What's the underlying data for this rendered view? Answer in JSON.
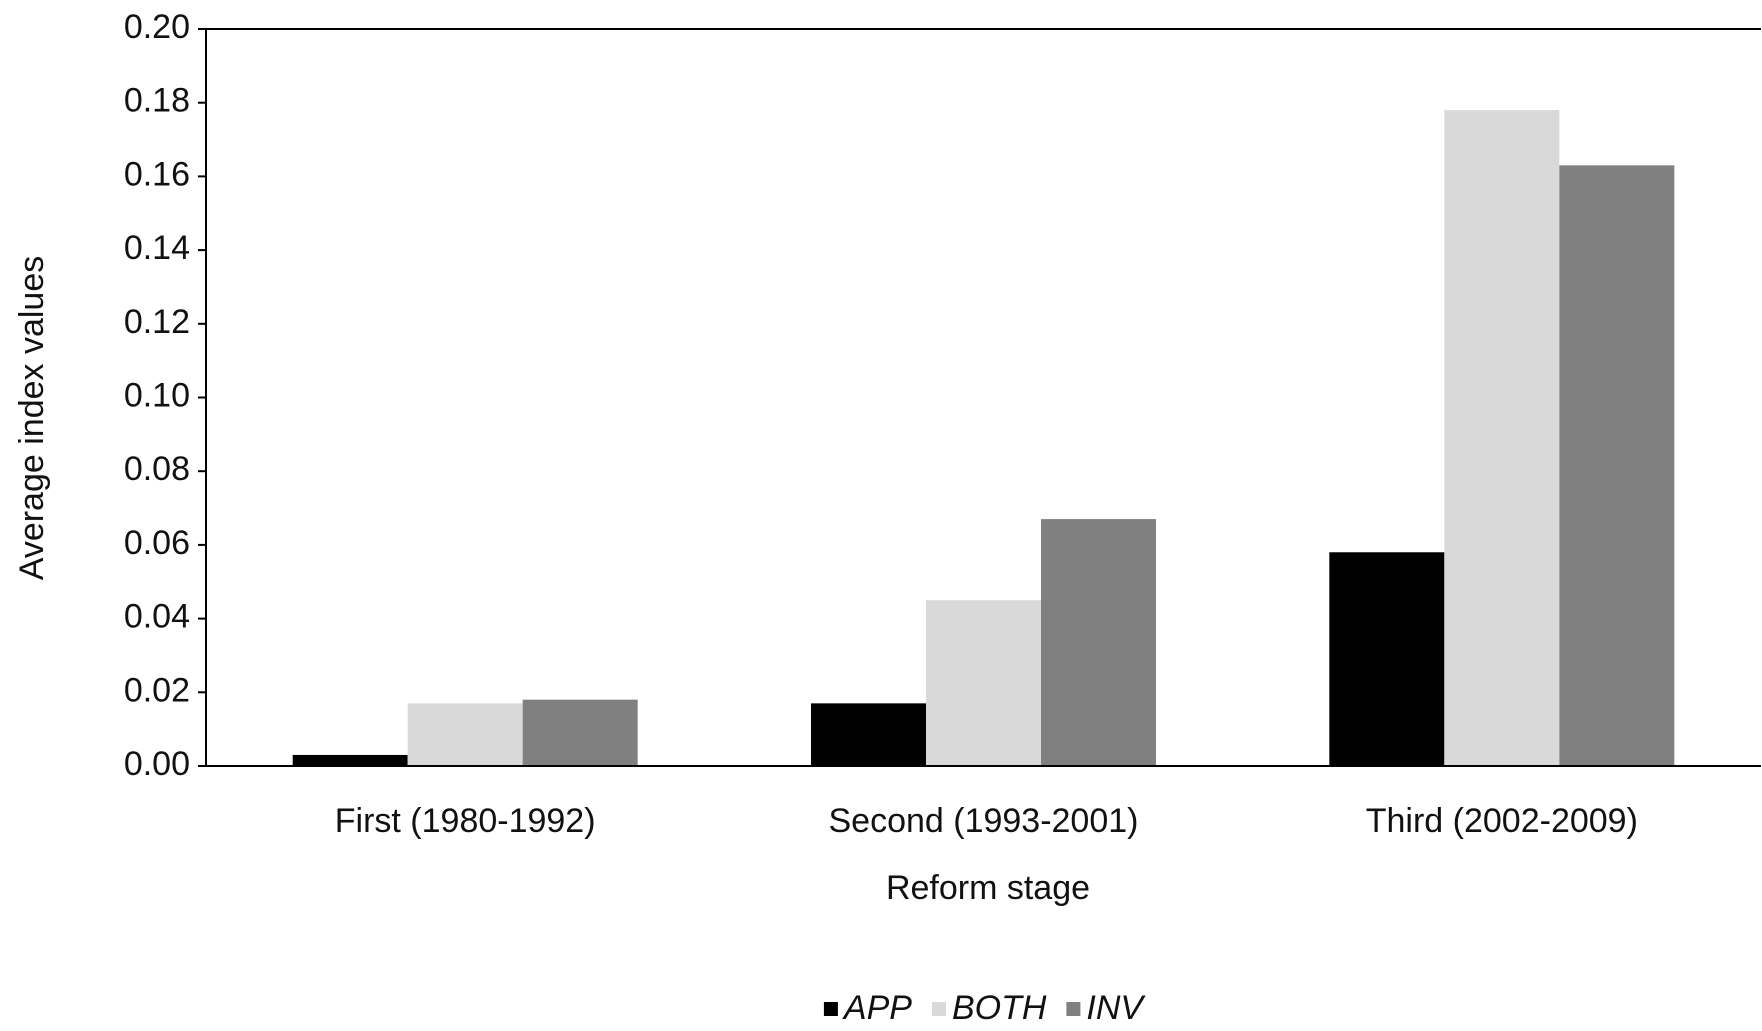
{
  "chart_data": {
    "type": "bar",
    "x_label": "Reform stage",
    "y_label": "Average index values",
    "categories": [
      "First (1980-1992)",
      "Second (1993-2001)",
      "Third (2002-2009)"
    ],
    "series": [
      {
        "name": "APP",
        "color": "#000000",
        "values": [
          0.003,
          0.017,
          0.058
        ]
      },
      {
        "name": "BOTH",
        "color": "#d9d9d9",
        "values": [
          0.017,
          0.045,
          0.178
        ]
      },
      {
        "name": "INV",
        "color": "#808080",
        "values": [
          0.018,
          0.067,
          0.163
        ]
      }
    ],
    "ylim": [
      0,
      0.2
    ],
    "yticks": [
      {
        "value": 0,
        "label": "0.00"
      },
      0.02,
      0.04,
      0.06,
      0.08,
      {
        "value": 0.1,
        "label": "0.10"
      },
      0.12,
      0.14,
      0.16,
      0.18,
      {
        "value": 0.2,
        "label": "0.20"
      }
    ],
    "grid": false,
    "legend": "bottom"
  }
}
